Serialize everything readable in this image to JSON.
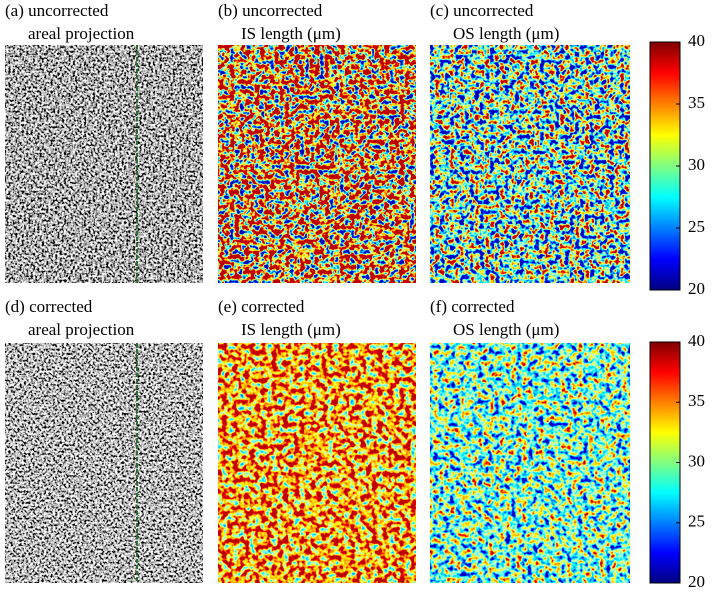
{
  "panels": [
    {
      "title": "(a) uncorrected",
      "subtitle": "areal projection"
    },
    {
      "title": "(b) uncorrected",
      "subtitle": "IS length (μm)"
    },
    {
      "title": "(c) uncorrected",
      "subtitle": "OS length (μm)"
    },
    {
      "title": "(d) corrected",
      "subtitle": "areal projection"
    },
    {
      "title": "(e) corrected",
      "subtitle": "IS length (μm)"
    },
    {
      "title": "(f) corrected",
      "subtitle": "OS length (μm)"
    }
  ],
  "colorbars": [
    {
      "lim": [
        20,
        40
      ],
      "ticks": [
        20,
        25,
        30,
        35,
        40
      ]
    },
    {
      "lim": [
        20,
        40
      ],
      "ticks": [
        20,
        25,
        30,
        35,
        40
      ]
    }
  ]
}
